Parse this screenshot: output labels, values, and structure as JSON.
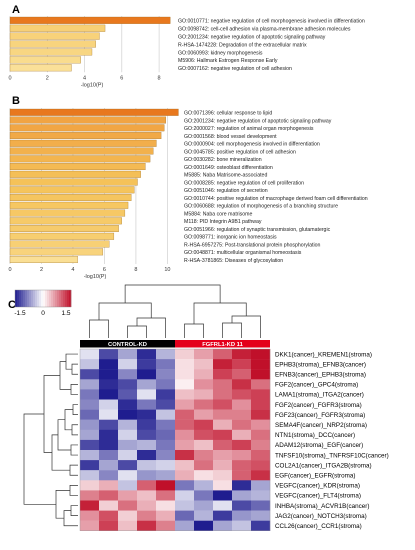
{
  "panel_letters": [
    "A",
    "B",
    "C"
  ],
  "colors": {
    "bar_top": "#e8781e",
    "bar_high": "#f0a040",
    "bar_mid": "#f5c35a",
    "bar_low": "#fbe7a6",
    "heat_low": "#1f1d8f",
    "heat_mid": "#ffffff",
    "heat_high": "#c0102a",
    "group_control": "#000000",
    "group_fgfrl1": "#e4001b"
  },
  "chart_data": [
    {
      "type": "bar",
      "panel": "A",
      "orientation": "horizontal",
      "categories": [
        "GO:0010771: negative regulation of cell morphogenesis involved in differentiation",
        "GO:0098742: cell-cell adhesion via plasma-membrane adhesion molecules",
        "GO:2001234: negative regulation of apoptotic signaling pathway",
        "R-HSA-1474228: Degradation of the extracellular matrix",
        "GO:0060993: kidney morphogenesis",
        "M5906: Hallmark Estrogen Response Early",
        "GO:0007162: negative regulation of cell adhesion"
      ],
      "values": [
        8.6,
        5.1,
        4.8,
        4.6,
        4.4,
        3.8,
        3.3
      ],
      "xlabel": "-log10(P)",
      "xlim": [
        0,
        8.8
      ],
      "xticks": [
        0,
        2,
        4,
        6,
        8
      ],
      "grid": true
    },
    {
      "type": "bar",
      "panel": "B",
      "orientation": "horizontal",
      "categories": [
        "GO:0071396: cellular response to lipid",
        "GO:2001234: negative regulation of apoptotic signaling pathway",
        "GO:2000027: regulation of animal organ morphogenesis",
        "GO:0001568: blood vessel development",
        "GO:0000904: cell morphogenesis involved in differentiation",
        "GO:0045785: positive regulation of cell adhesion",
        "GO:0030282: bone mineralization",
        "GO:0001649: osteoblast differentiation",
        "M5885: Naba Matrisome-associated",
        "GO:0008285: negative regulation of cell proliferation",
        "GO:0051046: regulation of secretion",
        "GO:0010744: positive regulation of macrophage derived foam cell differentiation",
        "GO:0060688: regulation of morphogenesis of a branching structure",
        "M5884: Naba core matrisome",
        "M118: PID Integrin A9B1 pathway",
        "GO:0051966: regulation of synaptic transmission, glutamatergic",
        "GO:0098771: inorganic ion homeostasis",
        "R-HSA-6957275: Post-translational protein phosphorylation",
        "GO:0048871: multicellular organismal homeostasis",
        "R-HSA-3781865: Diseases of glycosylation"
      ],
      "values": [
        10.7,
        9.9,
        9.8,
        9.6,
        9.3,
        9.1,
        8.9,
        8.6,
        8.3,
        8.1,
        7.9,
        7.7,
        7.5,
        7.3,
        7.1,
        6.9,
        6.6,
        6.3,
        5.9,
        4.3
      ],
      "xlabel": "-log10(P)",
      "xlim": [
        0,
        10.8
      ],
      "xticks": [
        0,
        2,
        4,
        6,
        8,
        10
      ],
      "grid": true
    },
    {
      "type": "heatmap",
      "panel": "C",
      "legend": {
        "ticks": [
          "-1.5",
          "0",
          "1.5"
        ],
        "range": [
          -1.5,
          1.5
        ]
      },
      "column_groups": [
        {
          "label": "CONTROL-KD",
          "count": 5
        },
        {
          "label": "FGFRL1-KD 11",
          "count": 5
        }
      ],
      "rows": [
        "DKK1(cancer)_KREMEN1(stroma)",
        "EPHB3(stroma)_EFNB3(cancer)",
        "EFNB3(cancer)_EPHB3(stroma)",
        "FGF2(cancer)_GPC4(stroma)",
        "LAMA1(stroma)_ITGA2(cancer)",
        "FGF2(cancer)_FGFR3(stroma)",
        "FGF23(cancer)_FGFR3(stroma)",
        "SEMA4F(cancer)_NRP2(stroma)",
        "NTN1(stroma)_DCC(cancer)",
        "ADAM12(stroma)_EGF(cancer)",
        "TNFSF10(stroma)_TNFRSF10C(cancer)",
        "COL2A1(cancer)_ITGA2B(stroma)",
        "EGF(cancer)_EGFR(stroma)",
        "VEGFC(cancer)_KDR(stroma)",
        "VEGFC(cancer)_FLT4(stroma)",
        "INHBA(stroma)_ACVR1B(cancer)",
        "JAG2(cancer)_NOTCH3(stroma)",
        "CCL26(cancer)_CCR1(stroma)"
      ],
      "values": [
        [
          -0.2,
          -1.2,
          -0.6,
          -1.4,
          -0.5,
          0.3,
          0.6,
          1.0,
          1.4,
          1.5
        ],
        [
          -0.4,
          -1.5,
          -0.3,
          -1.3,
          -0.9,
          0.2,
          0.4,
          1.4,
          1.2,
          1.6
        ],
        [
          -1.2,
          -1.5,
          -0.8,
          -1.5,
          -0.8,
          0.2,
          0.5,
          1.2,
          1.0,
          1.5
        ],
        [
          -0.6,
          -1.4,
          -1.2,
          -0.6,
          -0.9,
          0.1,
          0.7,
          0.9,
          1.3,
          0.9
        ],
        [
          -0.9,
          -1.5,
          -1.1,
          -0.2,
          -1.3,
          0.4,
          0.5,
          0.9,
          1.1,
          1.2
        ],
        [
          -0.8,
          -0.3,
          -1.4,
          -0.9,
          -1.2,
          0.6,
          0.9,
          1.1,
          0.7,
          1.2
        ],
        [
          -1.0,
          -0.2,
          -1.5,
          -1.4,
          -0.4,
          1.0,
          0.6,
          0.8,
          0.8,
          1.3
        ],
        [
          -0.7,
          -1.2,
          -0.5,
          -1.3,
          -0.9,
          1.0,
          1.2,
          0.5,
          0.9,
          0.7
        ],
        [
          -0.6,
          -1.4,
          -0.3,
          -1.2,
          -1.0,
          0.7,
          1.1,
          1.2,
          0.5,
          0.9
        ],
        [
          -1.2,
          -1.4,
          -0.6,
          -0.5,
          -0.9,
          0.6,
          0.4,
          1.0,
          1.2,
          0.8
        ],
        [
          -0.5,
          -0.9,
          -0.3,
          -1.4,
          -0.8,
          1.3,
          0.8,
          0.6,
          0.7,
          1.0
        ],
        [
          -1.3,
          -0.6,
          -1.2,
          -0.4,
          -0.3,
          0.4,
          0.9,
          0.5,
          1.0,
          1.1
        ],
        [
          -0.4,
          -0.8,
          -0.2,
          -0.7,
          -0.6,
          0.5,
          0.2,
          0.3,
          1.0,
          1.3
        ],
        [
          0.3,
          0.5,
          -0.4,
          1.0,
          1.5,
          -0.9,
          -0.5,
          0.2,
          -1.4,
          -0.6
        ],
        [
          0.8,
          1.0,
          0.6,
          0.4,
          0.9,
          -0.3,
          -0.9,
          -1.5,
          -0.6,
          -0.5
        ],
        [
          1.4,
          0.3,
          0.9,
          0.5,
          0.2,
          -0.4,
          -0.6,
          -0.2,
          -1.2,
          -1.0
        ],
        [
          0.7,
          1.1,
          0.3,
          0.8,
          0.5,
          -1.0,
          -0.5,
          -1.3,
          -0.7,
          -0.6
        ],
        [
          0.6,
          1.2,
          0.4,
          1.3,
          0.8,
          -0.6,
          -1.5,
          -0.6,
          -0.4,
          -1.3
        ]
      ]
    }
  ]
}
